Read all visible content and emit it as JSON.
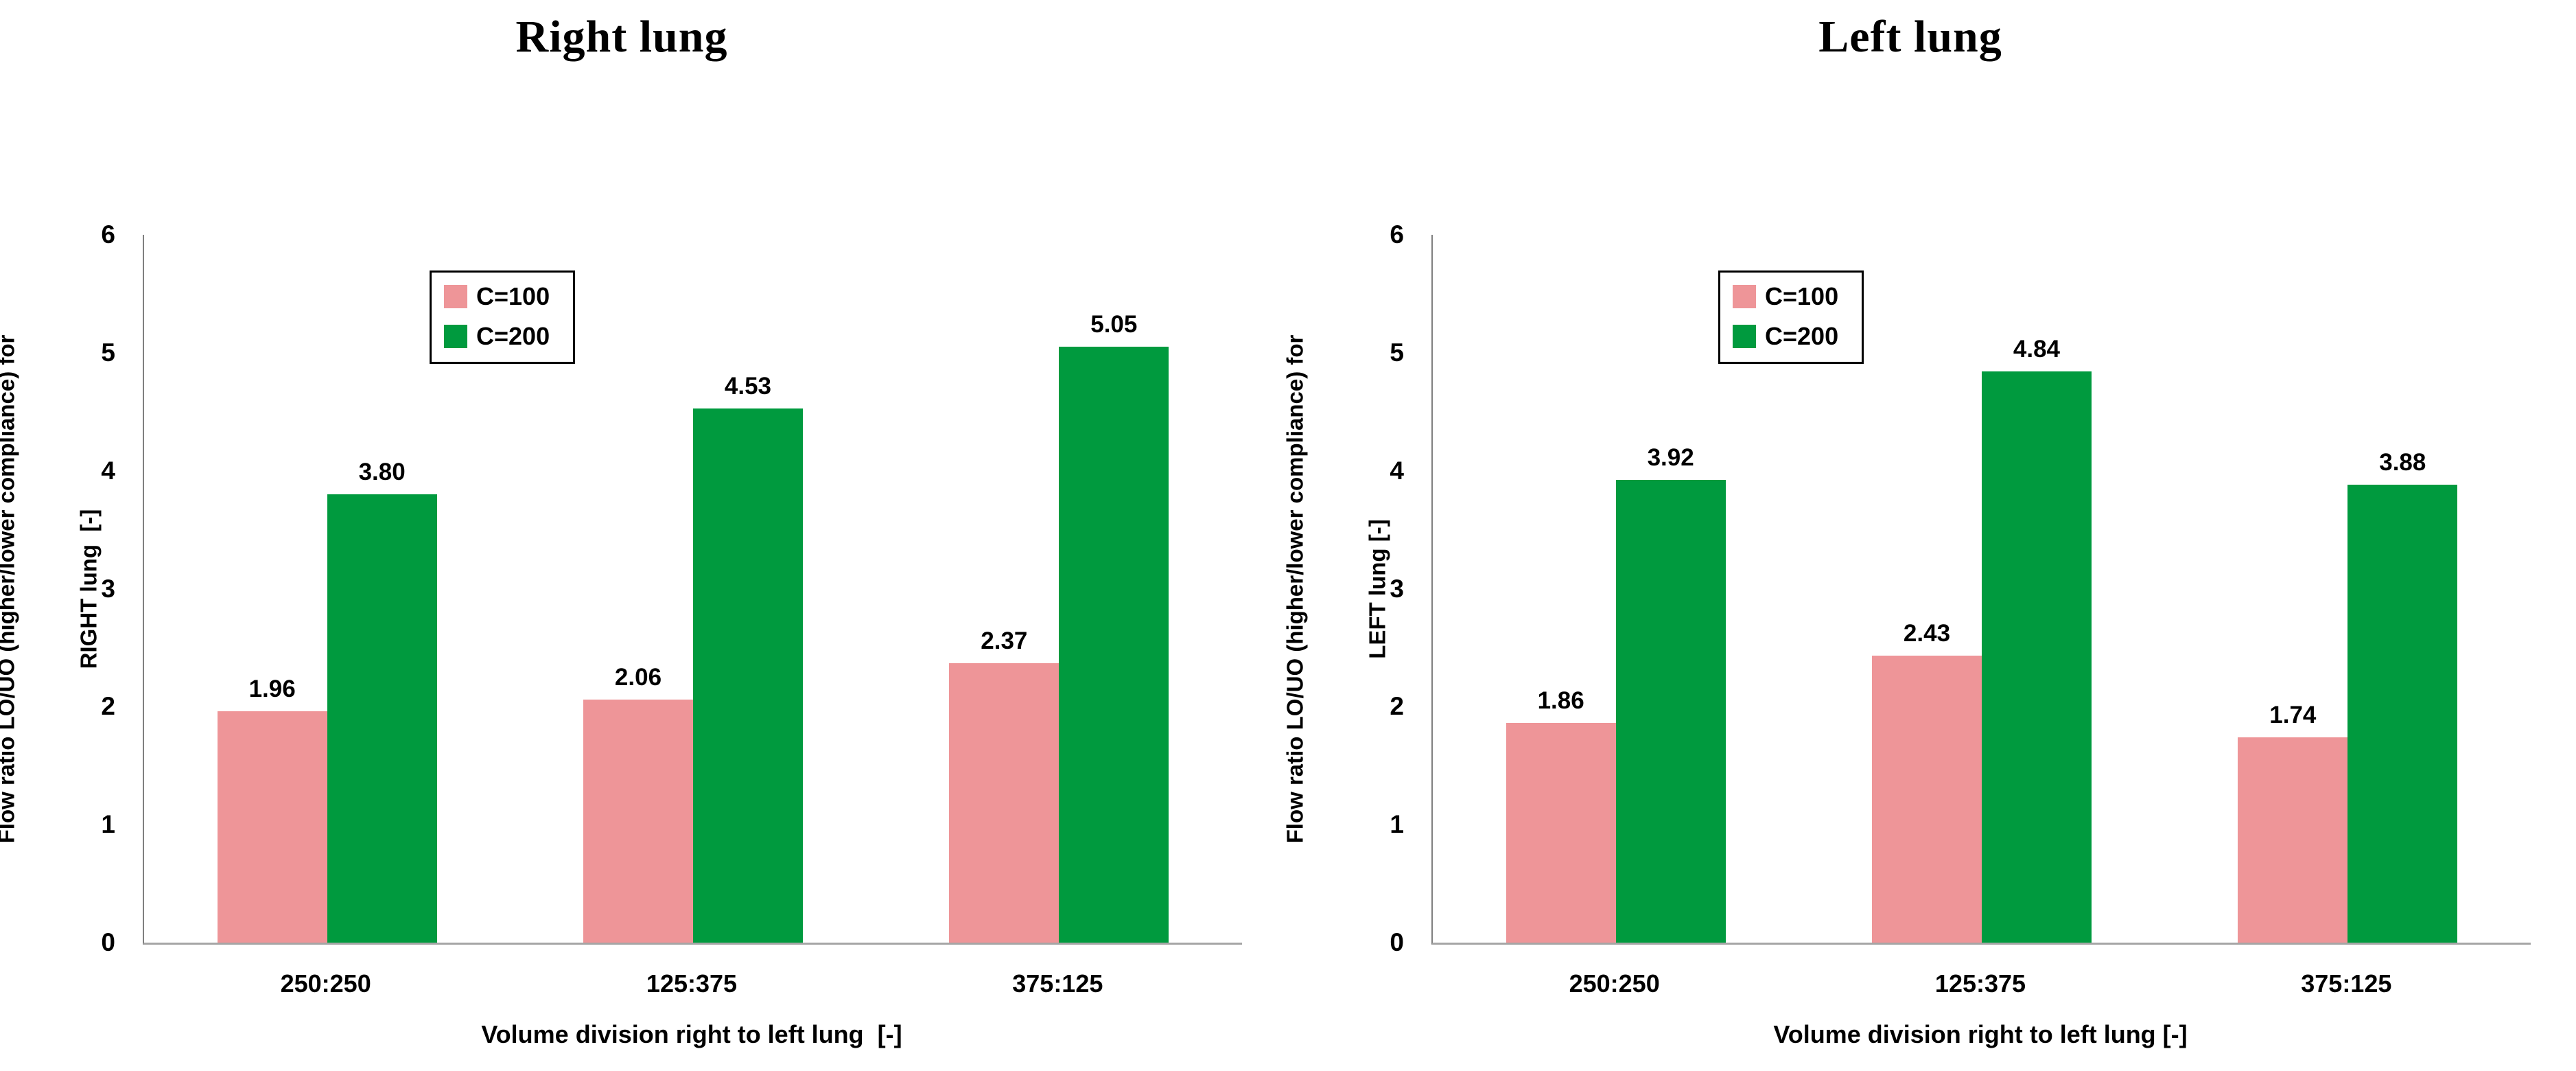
{
  "page": {
    "background": "#ffffff"
  },
  "chart_data": [
    {
      "type": "bar",
      "title": "Right lung",
      "categories": [
        "250:250",
        "125:375",
        "375:125"
      ],
      "series": [
        {
          "name": "C=100",
          "color": "#EE9598",
          "values": [
            1.96,
            2.06,
            2.37
          ],
          "labels": [
            "1.96",
            "2.06",
            "2.37"
          ]
        },
        {
          "name": "C=200",
          "color": "#009A3E",
          "values": [
            3.8,
            4.53,
            5.05
          ],
          "labels": [
            "3.80",
            "4.53",
            "5.05"
          ]
        }
      ],
      "xlabel": "Volume division right to left lung  [-]",
      "ylabel_line1": "Flow ratio LO/UO (higher/lower compliance) for",
      "ylabel_line2": "RIGHT lung  [-]",
      "ylim": [
        0,
        6
      ],
      "yticks": [
        0,
        1,
        2,
        3,
        4,
        5,
        6
      ],
      "grid": false,
      "legend_position": "inside-upper-left",
      "axis_color_y": "#808080",
      "axis_color_x": "#A6A6A6"
    },
    {
      "type": "bar",
      "title": "Left lung",
      "categories": [
        "250:250",
        "125:375",
        "375:125"
      ],
      "series": [
        {
          "name": "C=100",
          "color": "#EE9598",
          "values": [
            1.86,
            2.43,
            1.74
          ],
          "labels": [
            "1.86",
            "2.43",
            "1.74"
          ]
        },
        {
          "name": "C=200",
          "color": "#009A3E",
          "values": [
            3.92,
            4.84,
            3.88
          ],
          "labels": [
            "3.92",
            "4.84",
            "3.88"
          ]
        }
      ],
      "xlabel": "Volume division right to left lung [-]",
      "ylabel_line1": "Flow ratio LO/UO (higher/lower compliance) for",
      "ylabel_line2": "LEFT lung [-]",
      "ylim": [
        0,
        6
      ],
      "yticks": [
        0,
        1,
        2,
        3,
        4,
        5,
        6
      ],
      "grid": false,
      "legend_position": "inside-upper-left",
      "axis_color_y": "#808080",
      "axis_color_x": "#A6A6A6"
    }
  ]
}
